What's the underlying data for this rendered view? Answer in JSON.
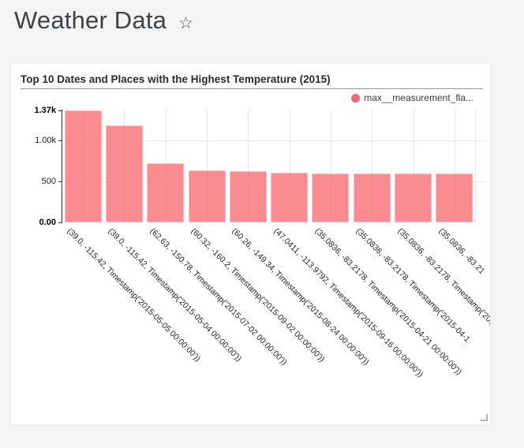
{
  "page": {
    "title": "Weather Data",
    "background_color": "#f4f4f5"
  },
  "header": {
    "star_icon": "☆"
  },
  "chart_data": {
    "type": "bar",
    "title": "Top 10 Dates and Places with the Highest Temperature (2015)",
    "categories": [
      "(39.0, -115.42, Timestamp('2015-05-05 00:00:00'))",
      "(39.0, -115.42, Timestamp('2015-05-04 00:00:00'))",
      "(62.63, -150.78, Timestamp('2015-07-02 00:00:00'))",
      "(60.32, -160.2, Timestamp('2015-09-02 00:00:00'))",
      "(60.26, -149.34, Timestamp('2015-08-24 00:00:00'))",
      "(47.0411, -113.9792, Timestamp('2015-09-16 00:00:00'))",
      "(35.0836, -83.2178, Timestamp('2015-04-21 00:00:00'))",
      "(35.0836, -83.2178, Timestamp('2015-04-1",
      "(35.0836, -83.2178, Timestamp('2015-04",
      "(35.0836, -83.21"
    ],
    "series": [
      {
        "name": "max__measurement_fla...",
        "color": "#f8646c",
        "values": [
          1370,
          1190,
          725,
          640,
          630,
          605,
          600,
          600,
          600,
          600
        ]
      }
    ],
    "bar_opacity": 0.75,
    "ylim": [
      0,
      1370
    ],
    "yticks": [
      {
        "label": "1.37k",
        "value": 1370,
        "bold": true,
        "grid": false
      },
      {
        "label": "1.00k",
        "value": 1000,
        "bold": false,
        "grid": true
      },
      {
        "label": "500",
        "value": 500,
        "bold": false,
        "grid": true
      },
      {
        "label": "0.00",
        "value": 0,
        "bold": true,
        "grid": false
      }
    ],
    "grid": true,
    "grid_color": "#e7e7e7",
    "axis_color": "#2f2f2f",
    "legend_position": "top-right",
    "xlabel": "",
    "ylabel": ""
  }
}
